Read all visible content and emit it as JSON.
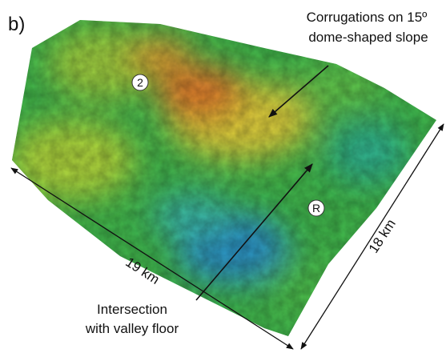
{
  "panel_label": "b)",
  "annotations": {
    "corrugations": [
      "Corrugations on 15º",
      "dome-shaped slope"
    ],
    "intersection": [
      "Intersection",
      "with valley floor"
    ]
  },
  "markers": [
    "2",
    "R"
  ],
  "scale": {
    "width": "19 km",
    "depth": "18 km"
  }
}
